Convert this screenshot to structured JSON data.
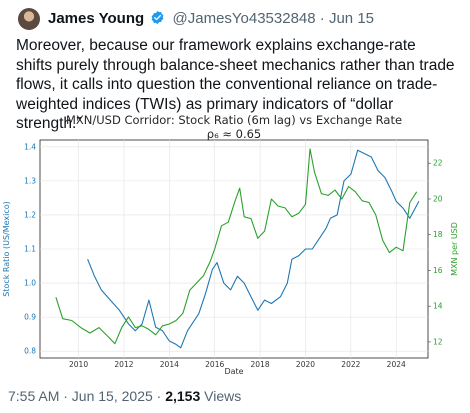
{
  "tweet": {
    "author_name": "James Young",
    "handle": "@JamesYo43532848",
    "separator": "·",
    "date": "Jun 15",
    "text": "Moreover, because our framework explains exchange-rate shifts purely through balance-sheet mechanics rather than trade flows, it calls into question the conventional reliance on trade-weighted indices (TWIs) as primary indicators of “dollar strength.”",
    "footer_time": "7:55 AM · Jun 15, 2025 · ",
    "views_count": "2,153",
    "views_label": " Views"
  },
  "colors": {
    "blue": "#1f77b4",
    "green": "#2ca02c",
    "verified": "#1d9bf0"
  },
  "chart_data": {
    "type": "line",
    "title": "MXN/USD Corridor: Stock Ratio (6m lag) vs Exchange Rate",
    "subtitle": "ρ₆ ≈ 0.65",
    "xlabel": "Date",
    "ylabel_left": "Stock Ratio (US/Mexico)",
    "ylabel_right": "MXN per USD",
    "xlim": [
      2008.3,
      2025.4
    ],
    "ylim_left": [
      0.78,
      1.42
    ],
    "ylim_right": [
      11.1,
      23.3
    ],
    "x_ticks": [
      "2010",
      "2012",
      "2014",
      "2016",
      "2018",
      "2020",
      "2022",
      "2024"
    ],
    "y_left_ticks": [
      "0.8",
      "0.9",
      "1.0",
      "1.1",
      "1.2",
      "1.3",
      "1.4"
    ],
    "y_right_ticks": [
      "12",
      "14",
      "16",
      "18",
      "20",
      "22"
    ],
    "grid": true,
    "series": [
      {
        "name": "",
        "axis": "left",
        "color": "#1f77b4",
        "x": [
          2010.4,
          2010.7,
          2011.0,
          2011.4,
          2011.8,
          2012.2,
          2012.5,
          2012.8,
          2013.1,
          2013.4,
          2013.7,
          2014.0,
          2014.3,
          2014.5,
          2014.8,
          2015.0,
          2015.3,
          2015.6,
          2015.9,
          2016.1,
          2016.4,
          2016.7,
          2017.0,
          2017.3,
          2017.6,
          2017.9,
          2018.2,
          2018.5,
          2018.9,
          2019.2,
          2019.4,
          2019.7,
          2020.0,
          2020.3,
          2020.6,
          2020.9,
          2021.1,
          2021.4,
          2021.7,
          2022.0,
          2022.3,
          2022.6,
          2022.9,
          2023.2,
          2023.5,
          2023.8,
          2024.0,
          2024.3,
          2024.6,
          2025.0
        ],
        "values": [
          1.07,
          1.02,
          0.98,
          0.95,
          0.92,
          0.88,
          0.86,
          0.88,
          0.95,
          0.87,
          0.86,
          0.83,
          0.82,
          0.81,
          0.86,
          0.88,
          0.91,
          0.97,
          1.04,
          1.06,
          1.0,
          0.98,
          1.02,
          1.0,
          0.96,
          0.92,
          0.95,
          0.94,
          0.96,
          1.0,
          1.07,
          1.08,
          1.1,
          1.1,
          1.13,
          1.16,
          1.19,
          1.2,
          1.3,
          1.32,
          1.39,
          1.38,
          1.37,
          1.33,
          1.31,
          1.27,
          1.24,
          1.22,
          1.19,
          1.24
        ]
      },
      {
        "name": "",
        "axis": "right",
        "color": "#2ca02c",
        "x": [
          2009.0,
          2009.3,
          2009.7,
          2010.1,
          2010.5,
          2010.9,
          2011.3,
          2011.6,
          2011.9,
          2012.2,
          2012.5,
          2012.8,
          2013.1,
          2013.4,
          2013.7,
          2014.0,
          2014.3,
          2014.6,
          2014.9,
          2015.2,
          2015.5,
          2015.8,
          2016.0,
          2016.3,
          2016.6,
          2016.9,
          2017.1,
          2017.3,
          2017.6,
          2017.9,
          2018.2,
          2018.5,
          2018.8,
          2019.1,
          2019.4,
          2019.7,
          2020.0,
          2020.2,
          2020.4,
          2020.7,
          2021.0,
          2021.3,
          2021.6,
          2021.9,
          2022.2,
          2022.5,
          2022.8,
          2023.1,
          2023.4,
          2023.7,
          2024.0,
          2024.3,
          2024.6,
          2024.9
        ],
        "values": [
          14.5,
          13.3,
          13.2,
          12.8,
          12.5,
          12.8,
          12.3,
          11.9,
          12.8,
          13.4,
          12.8,
          12.9,
          12.7,
          12.4,
          12.9,
          13.0,
          13.2,
          13.6,
          14.9,
          15.3,
          15.7,
          16.5,
          17.2,
          18.5,
          18.7,
          19.9,
          20.6,
          19.0,
          18.9,
          17.8,
          18.2,
          20.0,
          19.6,
          19.5,
          19.0,
          19.2,
          19.7,
          22.8,
          21.5,
          20.3,
          20.2,
          20.5,
          20.0,
          20.7,
          20.4,
          19.9,
          19.8,
          19.1,
          17.7,
          17.0,
          17.3,
          17.1,
          19.8,
          20.4
        ]
      }
    ]
  }
}
